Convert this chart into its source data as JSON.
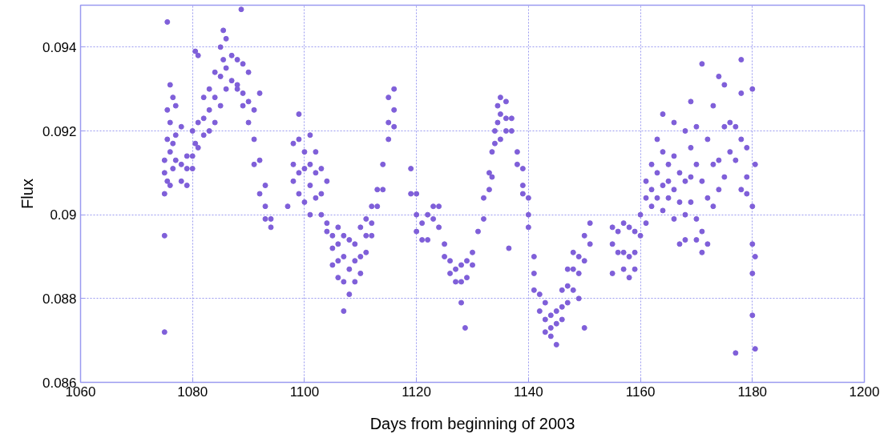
{
  "chart_data": {
    "type": "scatter",
    "xlabel": "Days from beginning of 2003",
    "ylabel": "Flux",
    "xlim": [
      1060,
      1200
    ],
    "xticks": [
      1060,
      1080,
      1100,
      1120,
      1140,
      1160,
      1180,
      1200
    ],
    "ylim": [
      0.086,
      0.095
    ],
    "yticks": [
      0.086,
      0.088,
      {
        "value": 0.09,
        "label": "0.09"
      },
      0.092,
      0.094
    ],
    "grid": true,
    "marker": "circle",
    "series": [
      {
        "color": "#7f5fd9",
        "x": [
          1075,
          1075,
          1075,
          1075,
          1075,
          1075.5,
          1075.5,
          1075.5,
          1075.5,
          1076,
          1076,
          1076,
          1076,
          1076.5,
          1076.5,
          1076.5,
          1077,
          1077,
          1077,
          1078,
          1078,
          1078,
          1079,
          1079,
          1079,
          1080,
          1080,
          1080,
          1080.5,
          1080.5,
          1081,
          1081,
          1081,
          1082,
          1082,
          1082,
          1083,
          1083,
          1083,
          1084,
          1084,
          1084,
          1085,
          1085,
          1085,
          1085.5,
          1085.5,
          1086,
          1086,
          1086,
          1087,
          1087,
          1088,
          1088,
          1088,
          1088.7,
          1089,
          1089,
          1089,
          1090,
          1090,
          1090,
          1091,
          1091,
          1091,
          1092,
          1092,
          1092,
          1093,
          1093,
          1093,
          1094,
          1094,
          1097,
          1098,
          1098,
          1098,
          1099,
          1099,
          1099,
          1099,
          1100,
          1100,
          1100,
          1101,
          1101,
          1101,
          1101,
          1102,
          1102,
          1102,
          1103,
          1103,
          1103,
          1104,
          1104,
          1104,
          1105,
          1105,
          1105,
          1106,
          1106,
          1106,
          1106,
          1107,
          1107,
          1107,
          1107,
          1108,
          1108,
          1108,
          1109,
          1109,
          1109,
          1110,
          1110,
          1110,
          1111,
          1111,
          1111,
          1112,
          1112,
          1112,
          1113,
          1113,
          1114,
          1114,
          1115,
          1115,
          1115,
          1116,
          1116,
          1116,
          1119,
          1119,
          1120,
          1120,
          1120,
          1121,
          1121,
          1122,
          1122,
          1123,
          1123,
          1124,
          1124,
          1125,
          1125,
          1126,
          1126,
          1127,
          1127,
          1128,
          1128,
          1128,
          1128.7,
          1129,
          1129,
          1130,
          1130,
          1131,
          1132,
          1132,
          1133,
          1133,
          1133.5,
          1133.5,
          1134,
          1134,
          1134.5,
          1134.5,
          1135,
          1135,
          1135,
          1136,
          1136,
          1136,
          1136.5,
          1137,
          1137,
          1138,
          1138,
          1139,
          1139,
          1139,
          1140,
          1140,
          1140,
          1141,
          1141,
          1141,
          1142,
          1142,
          1143,
          1143,
          1143,
          1144,
          1144,
          1144,
          1145,
          1145,
          1145,
          1146,
          1146,
          1146,
          1147,
          1147,
          1147,
          1148,
          1148,
          1148,
          1149,
          1149,
          1149,
          1150,
          1150,
          1150,
          1151,
          1151,
          1155,
          1155,
          1155,
          1156,
          1156,
          1157,
          1157,
          1157,
          1158,
          1158,
          1158,
          1159,
          1159,
          1159,
          1160,
          1160,
          1161,
          1161,
          1161,
          1162,
          1162,
          1162,
          1163,
          1163,
          1163,
          1164,
          1164,
          1164,
          1164,
          1165,
          1165,
          1165,
          1166,
          1166,
          1166,
          1166,
          1167,
          1167,
          1167,
          1168,
          1168,
          1168,
          1168,
          1169,
          1169,
          1169,
          1169,
          1170,
          1170,
          1170,
          1170,
          1171,
          1171,
          1171,
          1171,
          1172,
          1172,
          1172,
          1173,
          1173,
          1173,
          1174,
          1174,
          1174,
          1175,
          1175,
          1175,
          1176,
          1176,
          1177,
          1177,
          1177,
          1178,
          1178,
          1178,
          1178,
          1179,
          1179,
          1179,
          1180,
          1180,
          1180,
          1180,
          1180,
          1180.5,
          1180.5,
          1180.5
        ],
        "values": [
          0.0872,
          0.0895,
          0.0905,
          0.091,
          0.0913,
          0.0946,
          0.0918,
          0.0925,
          0.0908,
          0.0931,
          0.0922,
          0.0915,
          0.0907,
          0.0928,
          0.0917,
          0.0911,
          0.0926,
          0.0919,
          0.0913,
          0.0921,
          0.0912,
          0.0908,
          0.0914,
          0.0907,
          0.0911,
          0.092,
          0.0911,
          0.0914,
          0.0939,
          0.0917,
          0.0938,
          0.0922,
          0.0916,
          0.0928,
          0.0923,
          0.0919,
          0.093,
          0.0925,
          0.092,
          0.0934,
          0.0928,
          0.0922,
          0.094,
          0.0933,
          0.0926,
          0.0944,
          0.0937,
          0.0942,
          0.0935,
          0.093,
          0.0938,
          0.0932,
          0.0937,
          0.093,
          0.0931,
          0.0949,
          0.0936,
          0.0929,
          0.0926,
          0.0934,
          0.0927,
          0.0922,
          0.0925,
          0.0918,
          0.0912,
          0.0929,
          0.0913,
          0.0905,
          0.0907,
          0.0899,
          0.0902,
          0.0899,
          0.0897,
          0.0902,
          0.0917,
          0.0912,
          0.0908,
          0.0924,
          0.0918,
          0.091,
          0.0905,
          0.0915,
          0.0911,
          0.0903,
          0.0919,
          0.0912,
          0.0907,
          0.09,
          0.0915,
          0.091,
          0.0904,
          0.0911,
          0.0905,
          0.09,
          0.0908,
          0.0898,
          0.0896,
          0.0895,
          0.0892,
          0.0888,
          0.0897,
          0.0893,
          0.0889,
          0.0885,
          0.0895,
          0.089,
          0.0884,
          0.0877,
          0.0894,
          0.0887,
          0.0881,
          0.0893,
          0.0889,
          0.0884,
          0.0897,
          0.089,
          0.0886,
          0.0899,
          0.0895,
          0.0891,
          0.0902,
          0.0898,
          0.0895,
          0.0906,
          0.0902,
          0.0912,
          0.0906,
          0.0928,
          0.0922,
          0.0918,
          0.093,
          0.0925,
          0.0921,
          0.0911,
          0.0905,
          0.0905,
          0.09,
          0.0896,
          0.0898,
          0.0894,
          0.09,
          0.0894,
          0.0902,
          0.0899,
          0.0902,
          0.0897,
          0.0893,
          0.089,
          0.0889,
          0.0886,
          0.0887,
          0.0884,
          0.0888,
          0.0884,
          0.0879,
          0.0873,
          0.0889,
          0.0885,
          0.0891,
          0.0888,
          0.0896,
          0.0899,
          0.0904,
          0.091,
          0.0906,
          0.0915,
          0.0909,
          0.092,
          0.0917,
          0.0926,
          0.0922,
          0.0928,
          0.0924,
          0.0918,
          0.0927,
          0.0923,
          0.092,
          0.0892,
          0.0923,
          0.092,
          0.0915,
          0.0912,
          0.0911,
          0.0907,
          0.0905,
          0.0904,
          0.09,
          0.0897,
          0.089,
          0.0886,
          0.0882,
          0.0881,
          0.0877,
          0.0879,
          0.0875,
          0.0872,
          0.0876,
          0.0873,
          0.0871,
          0.0877,
          0.0874,
          0.0869,
          0.0882,
          0.0878,
          0.0875,
          0.0887,
          0.0883,
          0.0879,
          0.0891,
          0.0887,
          0.0882,
          0.089,
          0.0886,
          0.088,
          0.0895,
          0.0889,
          0.0873,
          0.0898,
          0.0893,
          0.0897,
          0.0893,
          0.0886,
          0.0896,
          0.0891,
          0.0898,
          0.0891,
          0.0887,
          0.0897,
          0.089,
          0.0885,
          0.0896,
          0.0891,
          0.0887,
          0.09,
          0.0895,
          0.0908,
          0.0904,
          0.0898,
          0.0912,
          0.0906,
          0.0902,
          0.0918,
          0.091,
          0.0904,
          0.0924,
          0.0915,
          0.0907,
          0.0901,
          0.0912,
          0.0908,
          0.0904,
          0.0922,
          0.0914,
          0.0906,
          0.0899,
          0.091,
          0.0903,
          0.0893,
          0.092,
          0.0908,
          0.09,
          0.0894,
          0.0927,
          0.0916,
          0.0909,
          0.0903,
          0.0921,
          0.0912,
          0.0899,
          0.0894,
          0.0936,
          0.0908,
          0.0896,
          0.0891,
          0.0918,
          0.0904,
          0.0893,
          0.0926,
          0.0912,
          0.0902,
          0.0933,
          0.0913,
          0.0906,
          0.0931,
          0.0921,
          0.0909,
          0.0922,
          0.0915,
          0.0867,
          0.0921,
          0.0913,
          0.0937,
          0.0929,
          0.0918,
          0.0906,
          0.0916,
          0.0909,
          0.0905,
          0.093,
          0.0902,
          0.0893,
          0.0886,
          0.0876,
          0.0912,
          0.089,
          0.0868
        ]
      }
    ]
  }
}
